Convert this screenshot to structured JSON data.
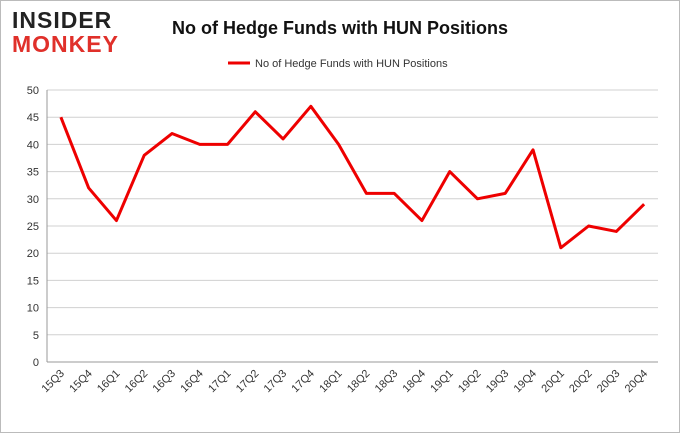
{
  "logo": {
    "top": "INSIDER",
    "bottom": "MONKEY"
  },
  "chart_data": {
    "type": "line",
    "title": "No of Hedge Funds with HUN Positions",
    "categories": [
      "15Q3",
      "15Q4",
      "16Q1",
      "16Q2",
      "16Q3",
      "16Q4",
      "17Q1",
      "17Q2",
      "17Q3",
      "17Q4",
      "18Q1",
      "18Q2",
      "18Q3",
      "18Q4",
      "19Q1",
      "19Q2",
      "19Q3",
      "19Q4",
      "20Q1",
      "20Q2",
      "20Q3",
      "20Q4"
    ],
    "series": [
      {
        "name": "No of Hedge Funds with HUN Positions",
        "color": "#ee0000",
        "values": [
          45,
          32,
          26,
          38,
          42,
          40,
          40,
          46,
          41,
          47,
          40,
          31,
          31,
          26,
          35,
          30,
          31,
          39,
          21,
          25,
          24,
          29
        ]
      }
    ],
    "ylim": [
      0,
      50
    ],
    "yticks": [
      0,
      5,
      10,
      15,
      20,
      25,
      30,
      35,
      40,
      45,
      50
    ],
    "grid": true,
    "legend": "top"
  }
}
